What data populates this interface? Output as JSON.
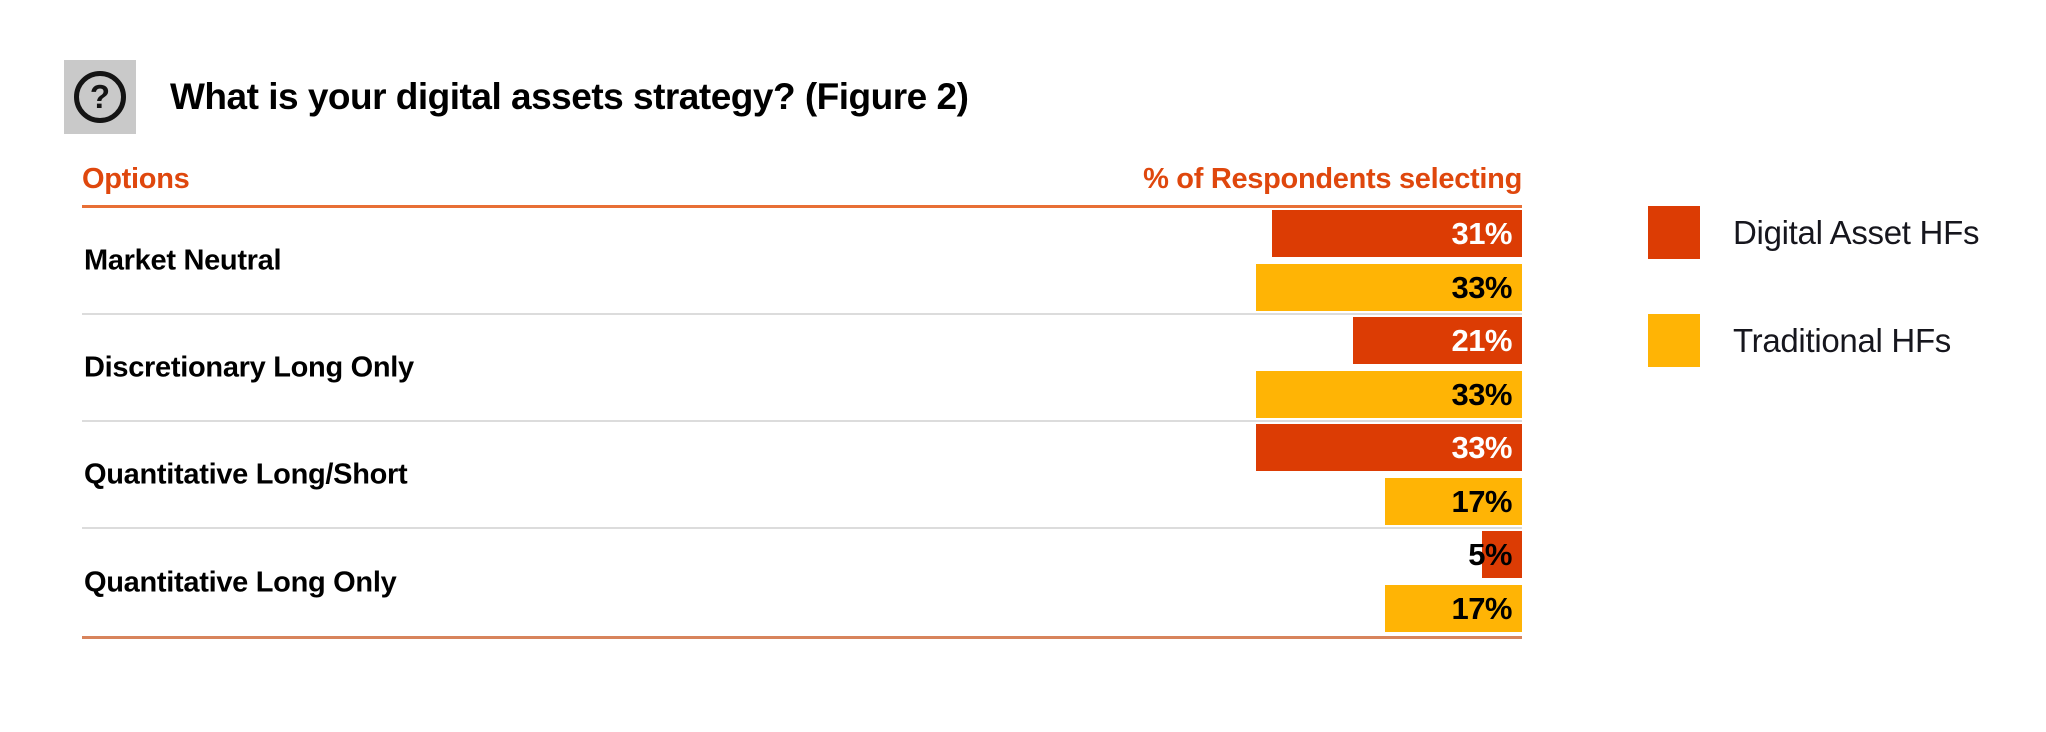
{
  "header": {
    "icon": "question-mark-icon",
    "icon_glyph": "?",
    "title": "What is your digital assets strategy? (Figure 2)"
  },
  "table": {
    "col_options": "Options",
    "col_percent": "% of Respondents selecting"
  },
  "legend": [
    {
      "label": "Digital Asset HFs",
      "color": "#dc3c04"
    },
    {
      "label": "Traditional HFs",
      "color": "#ffb405"
    }
  ],
  "colors": {
    "digital_bar": "#dc3c04",
    "traditional_bar": "#ffb405",
    "header_accent": "#df470d",
    "header_rule": "#e86f35",
    "row_divider": "#dcdcdc",
    "bottom_rule": "#d8845c",
    "bar_label_on_digital": "#ffffff",
    "bar_label_on_traditional": "#000000"
  },
  "chart_data": {
    "type": "bar",
    "orientation": "horizontal",
    "title": "What is your digital assets strategy? (Figure 2)",
    "xlabel": "% of Respondents selecting",
    "ylabel": "Options",
    "xlim": [
      0,
      40
    ],
    "grid": false,
    "legend_position": "right",
    "bar_anchor": "right-aligned",
    "value_suffix": "%",
    "categories": [
      "Market Neutral",
      "Discretionary Long Only",
      "Quantitative Long/Short",
      "Quantitative Long Only"
    ],
    "series": [
      {
        "name": "Digital Asset HFs",
        "color": "#dc3c04",
        "values": [
          31,
          21,
          33,
          5
        ]
      },
      {
        "name": "Traditional HFs",
        "color": "#ffb405",
        "values": [
          33,
          33,
          17,
          17
        ]
      }
    ],
    "data_labels": [
      [
        "31%",
        "33%"
      ],
      [
        "21%",
        "33%"
      ],
      [
        "33%",
        "17%"
      ],
      [
        "5%",
        "17%"
      ]
    ]
  }
}
